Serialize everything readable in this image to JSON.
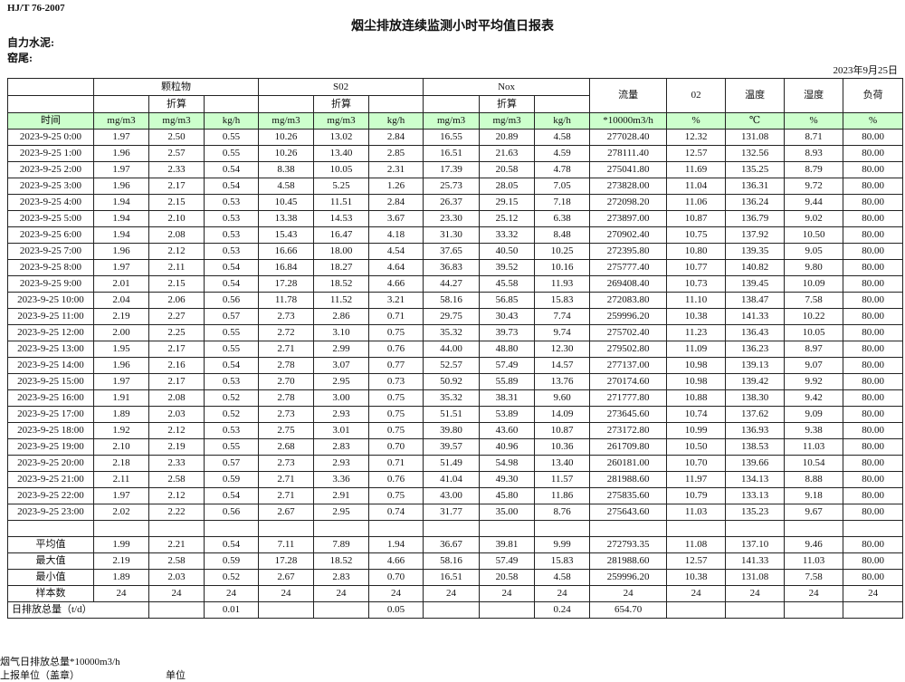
{
  "header": {
    "standard": "HJ/T  76-2007",
    "title": "烟尘排放连续监测小时平均值日报表",
    "company": "自力水泥:",
    "kiln": "窑尾:",
    "date": "2023年9月25日"
  },
  "columns": {
    "groups": [
      "颗粒物",
      "S02",
      "Nox",
      "流量",
      "02",
      "温度",
      "湿度",
      "负荷"
    ],
    "converted": "折算",
    "units": [
      "时间",
      "mg/m3",
      "mg/m3",
      "kg/h",
      "mg/m3",
      "mg/m3",
      "kg/h",
      "mg/m3",
      "mg/m3",
      "kg/h",
      "*10000m3/h",
      "%",
      "℃",
      "%",
      "%"
    ]
  },
  "rows": [
    [
      "2023-9-25 0:00",
      "1.97",
      "2.50",
      "0.55",
      "10.26",
      "13.02",
      "2.84",
      "16.55",
      "20.89",
      "4.58",
      "277028.40",
      "12.32",
      "131.08",
      "8.71",
      "80.00"
    ],
    [
      "2023-9-25 1:00",
      "1.96",
      "2.57",
      "0.55",
      "10.26",
      "13.40",
      "2.85",
      "16.51",
      "21.63",
      "4.59",
      "278111.40",
      "12.57",
      "132.56",
      "8.93",
      "80.00"
    ],
    [
      "2023-9-25 2:00",
      "1.97",
      "2.33",
      "0.54",
      "8.38",
      "10.05",
      "2.31",
      "17.39",
      "20.58",
      "4.78",
      "275041.80",
      "11.69",
      "135.25",
      "8.79",
      "80.00"
    ],
    [
      "2023-9-25 3:00",
      "1.96",
      "2.17",
      "0.54",
      "4.58",
      "5.25",
      "1.26",
      "25.73",
      "28.05",
      "7.05",
      "273828.00",
      "11.04",
      "136.31",
      "9.72",
      "80.00"
    ],
    [
      "2023-9-25 4:00",
      "1.94",
      "2.15",
      "0.53",
      "10.45",
      "11.51",
      "2.84",
      "26.37",
      "29.15",
      "7.18",
      "272098.20",
      "11.06",
      "136.24",
      "9.44",
      "80.00"
    ],
    [
      "2023-9-25 5:00",
      "1.94",
      "2.10",
      "0.53",
      "13.38",
      "14.53",
      "3.67",
      "23.30",
      "25.12",
      "6.38",
      "273897.00",
      "10.87",
      "136.79",
      "9.02",
      "80.00"
    ],
    [
      "2023-9-25 6:00",
      "1.94",
      "2.08",
      "0.53",
      "15.43",
      "16.47",
      "4.18",
      "31.30",
      "33.32",
      "8.48",
      "270902.40",
      "10.75",
      "137.92",
      "10.50",
      "80.00"
    ],
    [
      "2023-9-25 7:00",
      "1.96",
      "2.12",
      "0.53",
      "16.66",
      "18.00",
      "4.54",
      "37.65",
      "40.50",
      "10.25",
      "272395.80",
      "10.80",
      "139.35",
      "9.05",
      "80.00"
    ],
    [
      "2023-9-25 8:00",
      "1.97",
      "2.11",
      "0.54",
      "16.84",
      "18.27",
      "4.64",
      "36.83",
      "39.52",
      "10.16",
      "275777.40",
      "10.77",
      "140.82",
      "9.80",
      "80.00"
    ],
    [
      "2023-9-25 9:00",
      "2.01",
      "2.15",
      "0.54",
      "17.28",
      "18.52",
      "4.66",
      "44.27",
      "45.58",
      "11.93",
      "269408.40",
      "10.73",
      "139.45",
      "10.09",
      "80.00"
    ],
    [
      "2023-9-25 10:00",
      "2.04",
      "2.06",
      "0.56",
      "11.78",
      "11.52",
      "3.21",
      "58.16",
      "56.85",
      "15.83",
      "272083.80",
      "11.10",
      "138.47",
      "7.58",
      "80.00"
    ],
    [
      "2023-9-25 11:00",
      "2.19",
      "2.27",
      "0.57",
      "2.73",
      "2.86",
      "0.71",
      "29.75",
      "30.43",
      "7.74",
      "259996.20",
      "10.38",
      "141.33",
      "10.22",
      "80.00"
    ],
    [
      "2023-9-25 12:00",
      "2.00",
      "2.25",
      "0.55",
      "2.72",
      "3.10",
      "0.75",
      "35.32",
      "39.73",
      "9.74",
      "275702.40",
      "11.23",
      "136.43",
      "10.05",
      "80.00"
    ],
    [
      "2023-9-25 13:00",
      "1.95",
      "2.17",
      "0.55",
      "2.71",
      "2.99",
      "0.76",
      "44.00",
      "48.80",
      "12.30",
      "279502.80",
      "11.09",
      "136.23",
      "8.97",
      "80.00"
    ],
    [
      "2023-9-25 14:00",
      "1.96",
      "2.16",
      "0.54",
      "2.78",
      "3.07",
      "0.77",
      "52.57",
      "57.49",
      "14.57",
      "277137.00",
      "10.98",
      "139.13",
      "9.07",
      "80.00"
    ],
    [
      "2023-9-25 15:00",
      "1.97",
      "2.17",
      "0.53",
      "2.70",
      "2.95",
      "0.73",
      "50.92",
      "55.89",
      "13.76",
      "270174.60",
      "10.98",
      "139.42",
      "9.92",
      "80.00"
    ],
    [
      "2023-9-25 16:00",
      "1.91",
      "2.08",
      "0.52",
      "2.78",
      "3.00",
      "0.75",
      "35.32",
      "38.31",
      "9.60",
      "271777.80",
      "10.88",
      "138.30",
      "9.42",
      "80.00"
    ],
    [
      "2023-9-25 17:00",
      "1.89",
      "2.03",
      "0.52",
      "2.73",
      "2.93",
      "0.75",
      "51.51",
      "53.89",
      "14.09",
      "273645.60",
      "10.74",
      "137.62",
      "9.09",
      "80.00"
    ],
    [
      "2023-9-25 18:00",
      "1.92",
      "2.12",
      "0.53",
      "2.75",
      "3.01",
      "0.75",
      "39.80",
      "43.60",
      "10.87",
      "273172.80",
      "10.99",
      "136.93",
      "9.38",
      "80.00"
    ],
    [
      "2023-9-25 19:00",
      "2.10",
      "2.19",
      "0.55",
      "2.68",
      "2.83",
      "0.70",
      "39.57",
      "40.96",
      "10.36",
      "261709.80",
      "10.50",
      "138.53",
      "11.03",
      "80.00"
    ],
    [
      "2023-9-25 20:00",
      "2.18",
      "2.33",
      "0.57",
      "2.73",
      "2.93",
      "0.71",
      "51.49",
      "54.98",
      "13.40",
      "260181.00",
      "10.70",
      "139.66",
      "10.54",
      "80.00"
    ],
    [
      "2023-9-25 21:00",
      "2.11",
      "2.58",
      "0.59",
      "2.71",
      "3.36",
      "0.76",
      "41.04",
      "49.30",
      "11.57",
      "281988.60",
      "11.97",
      "134.13",
      "8.88",
      "80.00"
    ],
    [
      "2023-9-25 22:00",
      "1.97",
      "2.12",
      "0.54",
      "2.71",
      "2.91",
      "0.75",
      "43.00",
      "45.80",
      "11.86",
      "275835.60",
      "10.79",
      "133.13",
      "9.18",
      "80.00"
    ],
    [
      "2023-9-25 23:00",
      "2.02",
      "2.22",
      "0.56",
      "2.67",
      "2.95",
      "0.74",
      "31.77",
      "35.00",
      "8.76",
      "275643.60",
      "11.03",
      "135.23",
      "9.67",
      "80.00"
    ]
  ],
  "stats": [
    [
      "平均值",
      "1.99",
      "2.21",
      "0.54",
      "7.11",
      "7.89",
      "1.94",
      "36.67",
      "39.81",
      "9.99",
      "272793.35",
      "11.08",
      "137.10",
      "9.46",
      "80.00"
    ],
    [
      "最大值",
      "2.19",
      "2.58",
      "0.59",
      "17.28",
      "18.52",
      "4.66",
      "58.16",
      "57.49",
      "15.83",
      "281988.60",
      "12.57",
      "141.33",
      "11.03",
      "80.00"
    ],
    [
      "最小值",
      "1.89",
      "2.03",
      "0.52",
      "2.67",
      "2.83",
      "0.70",
      "16.51",
      "20.58",
      "4.58",
      "259996.20",
      "10.38",
      "131.08",
      "7.58",
      "80.00"
    ],
    [
      "样本数",
      "24",
      "24",
      "24",
      "24",
      "24",
      "24",
      "24",
      "24",
      "24",
      "24",
      "24",
      "24",
      "24",
      "24"
    ]
  ],
  "daily_total": {
    "label": "日排放总量（t/d）",
    "values": [
      "",
      "0.01",
      "",
      "",
      "0.05",
      "",
      "",
      "0.24",
      "654.70",
      "",
      "",
      "",
      ""
    ]
  },
  "footer": {
    "flue_total_note": "烟气日排放总量*10000m3/h",
    "reporting_unit": "上报单位（盖章）",
    "unit": "单位"
  },
  "colors": {
    "unit_row_bg": "#ccffcc",
    "border": "#222222"
  }
}
